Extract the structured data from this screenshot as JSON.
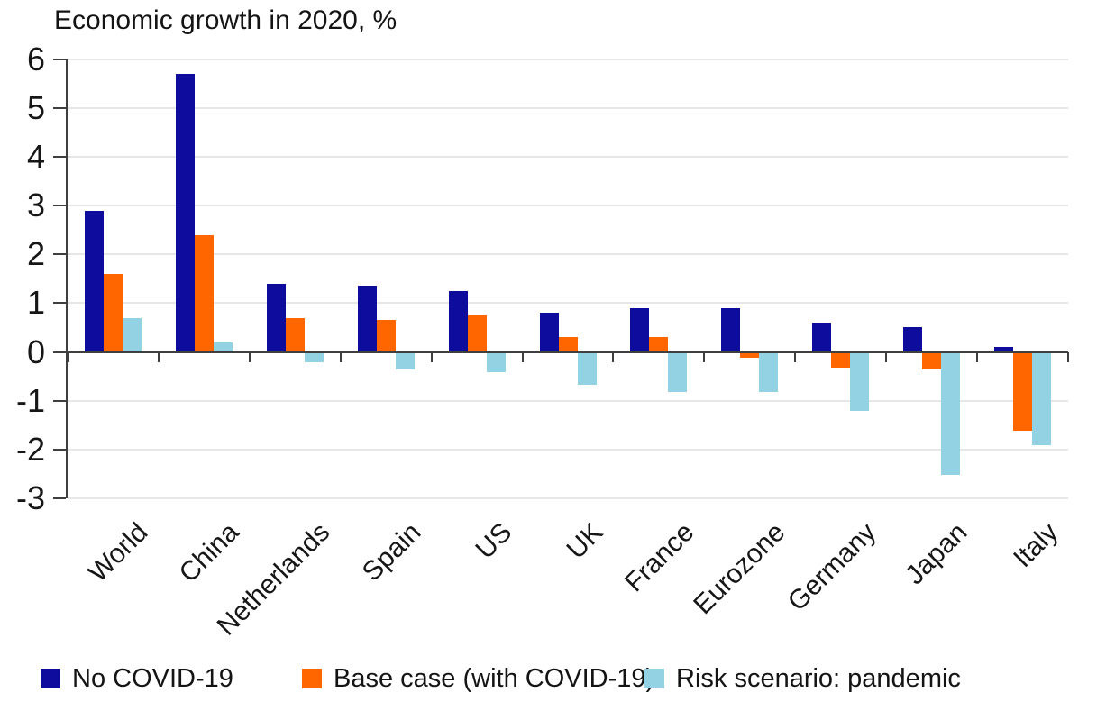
{
  "chart_data": {
    "type": "bar",
    "title": "Economic growth in 2020, %",
    "categories": [
      "World",
      "China",
      "Netherlands",
      "Spain",
      "US",
      "UK",
      "France",
      "Eurozone",
      "Germany",
      "Japan",
      "Italy"
    ],
    "series": [
      {
        "name": "No COVID-19",
        "color": "#0d0c9c",
        "values": [
          2.9,
          5.7,
          1.4,
          1.35,
          1.25,
          0.8,
          0.9,
          0.9,
          0.6,
          0.5,
          0.1
        ]
      },
      {
        "name": "Base case (with COVID-19)",
        "color": "#ff6600",
        "values": [
          1.6,
          2.4,
          0.7,
          0.65,
          0.75,
          0.3,
          0.3,
          -0.1,
          -0.3,
          -0.35,
          -1.6
        ]
      },
      {
        "name": "Risk scenario: pandemic",
        "color": "#92d2e2",
        "values": [
          0.7,
          0.2,
          -0.2,
          -0.35,
          -0.4,
          -0.65,
          -0.8,
          -0.8,
          -1.2,
          -2.5,
          -1.9
        ]
      }
    ],
    "y_ticks": [
      6,
      5,
      4,
      3,
      2,
      1,
      0,
      -1,
      -2,
      -3
    ],
    "ylim": [
      -3,
      6
    ],
    "xlabel": "",
    "ylabel": "",
    "grid": true,
    "legend_position": "bottom"
  },
  "colors": {
    "grid": "#e7e7e7",
    "axis": "#3f3f3f",
    "text": "#141414"
  }
}
